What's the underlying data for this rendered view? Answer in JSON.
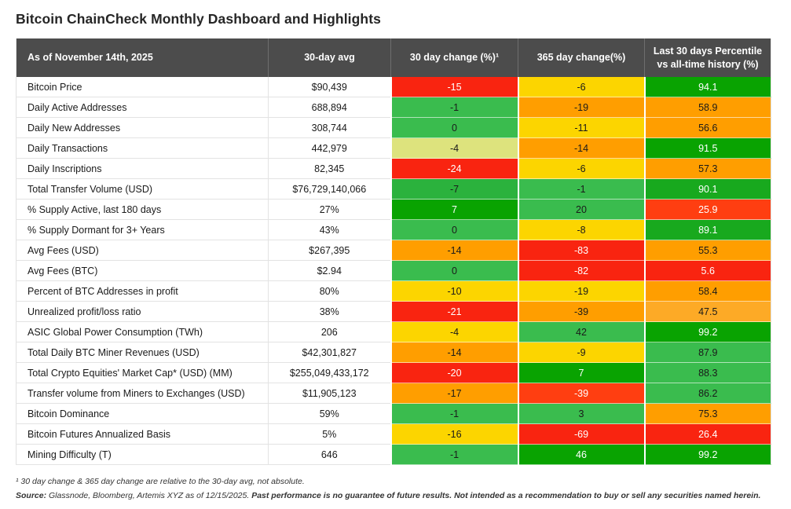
{
  "title": "Bitcoin ChainCheck Monthly Dashboard and Highlights",
  "colors": {
    "header_bg": "#4c4c4c",
    "header_fg": "#ffffff",
    "red": {
      "bg": "#f92410",
      "fg": "#ffffff"
    },
    "redorange": {
      "bg": "#ff3e11",
      "fg": "#ffffff"
    },
    "orange": {
      "bg": "#ff9e00",
      "fg": "#1a1a1a"
    },
    "lightorange": {
      "bg": "#fdaa26",
      "fg": "#1a1a1a"
    },
    "yellow": {
      "bg": "#fcd500",
      "fg": "#1a1a1a"
    },
    "khaki": {
      "bg": "#dde37d",
      "fg": "#1a1a1a"
    },
    "medgreen": {
      "bg": "#3abc4e",
      "fg": "#1a1a1a"
    },
    "deepmedgreen": {
      "bg": "#2bb23d",
      "fg": "#1a1a1a"
    },
    "green": {
      "bg": "#18a91e",
      "fg": "#ffffff"
    },
    "darkgreen": {
      "bg": "#09a301",
      "fg": "#ffffff"
    }
  },
  "chart_data": {
    "type": "table",
    "title": "Bitcoin ChainCheck Monthly Dashboard and Highlights",
    "columns": [
      "As of November 14th, 2025",
      "30-day avg",
      "30 day change (%)¹",
      "365 day change(%)",
      "Last 30 days Percentile vs all-time history (%)"
    ],
    "rows": [
      {
        "label": "Bitcoin Price",
        "avg": "$90,439",
        "d30": {
          "v": "-15",
          "c": "red"
        },
        "d365": {
          "v": "-6",
          "c": "yellow"
        },
        "pct": {
          "v": "94.1",
          "c": "darkgreen"
        }
      },
      {
        "label": "Daily Active Addresses",
        "avg": "688,894",
        "d30": {
          "v": "-1",
          "c": "medgreen"
        },
        "d365": {
          "v": "-19",
          "c": "orange"
        },
        "pct": {
          "v": "58.9",
          "c": "orange"
        }
      },
      {
        "label": "Daily New Addresses",
        "avg": "308,744",
        "d30": {
          "v": "0",
          "c": "medgreen"
        },
        "d365": {
          "v": "-11",
          "c": "yellow"
        },
        "pct": {
          "v": "56.6",
          "c": "orange"
        }
      },
      {
        "label": "Daily Transactions",
        "avg": "442,979",
        "d30": {
          "v": "-4",
          "c": "khaki"
        },
        "d365": {
          "v": "-14",
          "c": "orange"
        },
        "pct": {
          "v": "91.5",
          "c": "darkgreen"
        }
      },
      {
        "label": "Daily Inscriptions",
        "avg": "82,345",
        "d30": {
          "v": "-24",
          "c": "red"
        },
        "d365": {
          "v": "-6",
          "c": "yellow"
        },
        "pct": {
          "v": "57.3",
          "c": "orange"
        }
      },
      {
        "label": "Total Transfer Volume (USD)",
        "avg": "$76,729,140,066",
        "d30": {
          "v": "-7",
          "c": "deepmedgreen"
        },
        "d365": {
          "v": "-1",
          "c": "medgreen"
        },
        "pct": {
          "v": "90.1",
          "c": "green"
        }
      },
      {
        "label": "% Supply Active, last 180 days",
        "avg": "27%",
        "d30": {
          "v": "7",
          "c": "darkgreen"
        },
        "d365": {
          "v": "20",
          "c": "medgreen"
        },
        "pct": {
          "v": "25.9",
          "c": "redorange"
        }
      },
      {
        "label": "% Supply Dormant for 3+ Years",
        "avg": "43%",
        "d30": {
          "v": "0",
          "c": "medgreen"
        },
        "d365": {
          "v": "-8",
          "c": "yellow"
        },
        "pct": {
          "v": "89.1",
          "c": "green"
        }
      },
      {
        "label": "Avg Fees (USD)",
        "avg": "$267,395",
        "d30": {
          "v": "-14",
          "c": "orange"
        },
        "d365": {
          "v": "-83",
          "c": "red"
        },
        "pct": {
          "v": "55.3",
          "c": "orange"
        }
      },
      {
        "label": "Avg Fees (BTC)",
        "avg": "$2.94",
        "d30": {
          "v": "0",
          "c": "medgreen"
        },
        "d365": {
          "v": "-82",
          "c": "red"
        },
        "pct": {
          "v": "5.6",
          "c": "red"
        }
      },
      {
        "label": "Percent of BTC Addresses in profit",
        "avg": "80%",
        "d30": {
          "v": "-10",
          "c": "yellow"
        },
        "d365": {
          "v": "-19",
          "c": "yellow"
        },
        "pct": {
          "v": "58.4",
          "c": "orange"
        }
      },
      {
        "label": "Unrealized profit/loss ratio",
        "avg": "38%",
        "d30": {
          "v": "-21",
          "c": "red"
        },
        "d365": {
          "v": "-39",
          "c": "orange"
        },
        "pct": {
          "v": "47.5",
          "c": "lightorange"
        }
      },
      {
        "label": "ASIC Global Power Consumption (TWh)",
        "avg": "206",
        "d30": {
          "v": "-4",
          "c": "yellow"
        },
        "d365": {
          "v": "42",
          "c": "medgreen"
        },
        "pct": {
          "v": "99.2",
          "c": "darkgreen"
        }
      },
      {
        "label": "Total Daily BTC Miner Revenues (USD)",
        "avg": "$42,301,827",
        "d30": {
          "v": "-14",
          "c": "orange"
        },
        "d365": {
          "v": "-9",
          "c": "yellow"
        },
        "pct": {
          "v": "87.9",
          "c": "medgreen"
        }
      },
      {
        "label": "Total Crypto Equities' Market Cap* (USD) (MM)",
        "avg": "$255,049,433,172",
        "d30": {
          "v": "-20",
          "c": "red"
        },
        "d365": {
          "v": "7",
          "c": "darkgreen"
        },
        "pct": {
          "v": "88.3",
          "c": "medgreen"
        }
      },
      {
        "label": "Transfer volume from Miners to Exchanges (USD)",
        "avg": "$11,905,123",
        "d30": {
          "v": "-17",
          "c": "orange"
        },
        "d365": {
          "v": "-39",
          "c": "redorange"
        },
        "pct": {
          "v": "86.2",
          "c": "medgreen"
        }
      },
      {
        "label": "Bitcoin Dominance",
        "avg": "59%",
        "d30": {
          "v": "-1",
          "c": "medgreen"
        },
        "d365": {
          "v": "3",
          "c": "medgreen"
        },
        "pct": {
          "v": "75.3",
          "c": "orange"
        }
      },
      {
        "label": "Bitcoin Futures Annualized Basis",
        "avg": "5%",
        "d30": {
          "v": "-16",
          "c": "yellow"
        },
        "d365": {
          "v": "-69",
          "c": "red"
        },
        "pct": {
          "v": "26.4",
          "c": "red"
        }
      },
      {
        "label": "Mining Difficulty (T)",
        "avg": "646",
        "d30": {
          "v": "-1",
          "c": "medgreen"
        },
        "d365": {
          "v": "46",
          "c": "darkgreen"
        },
        "pct": {
          "v": "99.2",
          "c": "darkgreen"
        }
      }
    ]
  },
  "footnotes": {
    "note1": "¹ 30 day change & 365 day change are relative to the 30-day avg, not absolute.",
    "source_label": "Source:",
    "source_text": " Glassnode, Bloomberg, Artemis XYZ as of 12/15/2025. ",
    "disclaimer": "Past performance is no guarantee of future results. Not intended as a recommendation to buy or sell any securities named herein."
  }
}
